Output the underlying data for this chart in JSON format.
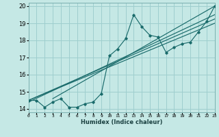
{
  "xlabel": "Humidex (Indice chaleur)",
  "xlim": [
    0,
    23
  ],
  "ylim": [
    13.8,
    20.2
  ],
  "xticks": [
    0,
    1,
    2,
    3,
    4,
    5,
    6,
    7,
    8,
    9,
    10,
    11,
    12,
    13,
    14,
    15,
    16,
    17,
    18,
    19,
    20,
    21,
    22,
    23
  ],
  "yticks": [
    14,
    15,
    16,
    17,
    18,
    19,
    20
  ],
  "bg_color": "#c5e8e5",
  "grid_color": "#9ecece",
  "line_color": "#1a6b6b",
  "data_line": [
    [
      0,
      14.5
    ],
    [
      1,
      14.5
    ],
    [
      2,
      14.1
    ],
    [
      3,
      14.4
    ],
    [
      4,
      14.6
    ],
    [
      5,
      14.1
    ],
    [
      6,
      14.1
    ],
    [
      7,
      14.3
    ],
    [
      8,
      14.4
    ],
    [
      9,
      14.9
    ],
    [
      10,
      17.1
    ],
    [
      11,
      17.5
    ],
    [
      12,
      18.1
    ],
    [
      13,
      19.5
    ],
    [
      14,
      18.8
    ],
    [
      15,
      18.3
    ],
    [
      16,
      18.2
    ],
    [
      17,
      17.3
    ],
    [
      18,
      17.6
    ],
    [
      19,
      17.8
    ],
    [
      20,
      17.9
    ],
    [
      21,
      18.5
    ],
    [
      22,
      19.1
    ],
    [
      23,
      20.0
    ]
  ],
  "trend_lines": [
    [
      [
        0,
        14.5
      ],
      [
        23,
        19.0
      ]
    ],
    [
      [
        0,
        14.5
      ],
      [
        23,
        19.25
      ]
    ],
    [
      [
        0,
        14.4
      ],
      [
        23,
        19.5
      ]
    ],
    [
      [
        3,
        14.6
      ],
      [
        23,
        20.0
      ]
    ]
  ]
}
